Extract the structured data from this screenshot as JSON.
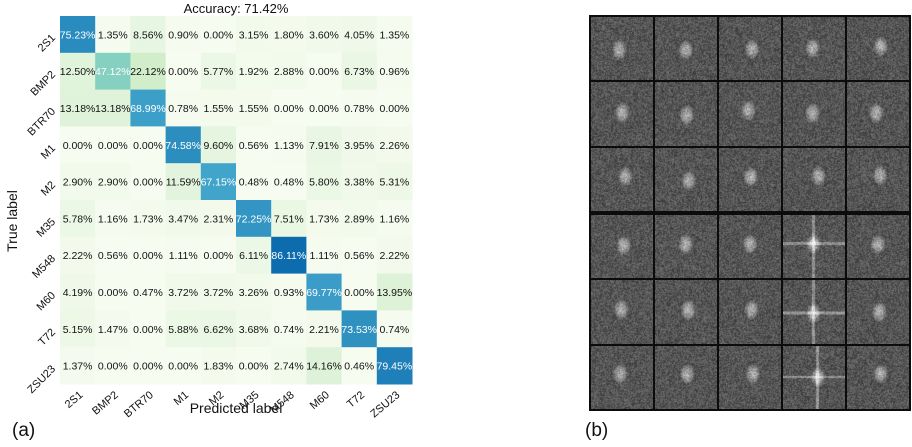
{
  "panels": {
    "a_label": "(a)",
    "b_label": "(b)"
  },
  "chart_data": {
    "type": "heatmap",
    "title": "Accuracy: 71.42%",
    "xlabel": "Predicted label",
    "ylabel": "True label",
    "x": [
      "2S1",
      "BMP2",
      "BTR70",
      "M1",
      "M2",
      "M35",
      "M548",
      "M60",
      "T72",
      "ZSU23"
    ],
    "y": [
      "2S1",
      "BMP2",
      "BTR70",
      "M1",
      "M2",
      "M35",
      "M548",
      "M60",
      "T72",
      "ZSU23"
    ],
    "values": [
      [
        75.23,
        1.35,
        8.56,
        0.9,
        0.0,
        3.15,
        1.8,
        3.6,
        4.05,
        1.35
      ],
      [
        12.5,
        47.12,
        22.12,
        0.0,
        5.77,
        1.92,
        2.88,
        0.0,
        6.73,
        0.96
      ],
      [
        13.18,
        13.18,
        68.99,
        0.78,
        1.55,
        1.55,
        0.0,
        0.0,
        0.78,
        0.0
      ],
      [
        0.0,
        0.0,
        0.0,
        74.58,
        9.6,
        0.56,
        1.13,
        7.91,
        3.95,
        2.26
      ],
      [
        2.9,
        2.9,
        0.0,
        11.59,
        67.15,
        0.48,
        0.48,
        5.8,
        3.38,
        5.31
      ],
      [
        5.78,
        1.16,
        1.73,
        3.47,
        2.31,
        72.25,
        7.51,
        1.73,
        2.89,
        1.16
      ],
      [
        2.22,
        0.56,
        0.0,
        1.11,
        0.0,
        6.11,
        86.11,
        1.11,
        0.56,
        2.22
      ],
      [
        4.19,
        0.0,
        0.47,
        3.72,
        3.72,
        3.26,
        0.93,
        69.77,
        0.0,
        13.95
      ],
      [
        5.15,
        1.47,
        0.0,
        5.88,
        6.62,
        3.68,
        0.74,
        2.21,
        73.53,
        0.74
      ],
      [
        1.37,
        0.0,
        0.0,
        0.0,
        1.83,
        0.0,
        2.74,
        14.16,
        0.46,
        79.45
      ]
    ],
    "value_format": "percent-2dp",
    "colormap": "GnBu",
    "colorscale_range": [
      0,
      100
    ]
  },
  "sar_grid": {
    "rows": 6,
    "cols": 5,
    "description_visible": false
  }
}
